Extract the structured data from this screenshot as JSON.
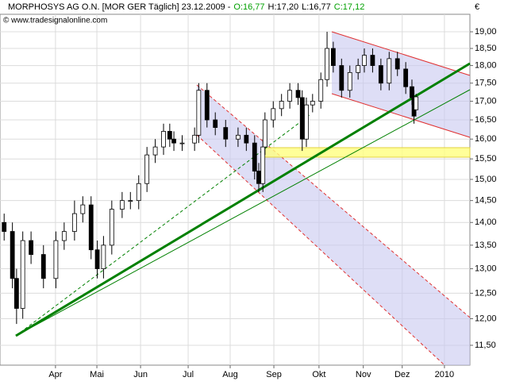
{
  "chart_data": {
    "type": "candlestick",
    "title": "MORPHOSYS AG O.N. [MOR GER  Täglich] 23.12.2009 -",
    "quote": [
      {
        "text": "O:16,77",
        "color": "#00a000"
      },
      {
        "text": "H:17,20",
        "color": "#000000"
      },
      {
        "text": "L:16,77",
        "color": "#000000"
      },
      {
        "text": "C:17,12",
        "color": "#00a000"
      }
    ],
    "source": "© www.tradesignalonline.com",
    "currency": "€",
    "log_scale": true,
    "grid": true,
    "up_color": "#ffffff",
    "down_color": "#000000",
    "x": [
      0,
      4,
      6,
      9,
      13,
      19,
      25,
      29,
      34,
      38,
      42,
      45,
      48,
      52,
      57,
      61,
      65,
      69,
      73,
      77,
      80,
      82,
      86,
      92,
      94,
      98,
      102,
      107,
      113,
      117,
      121,
      123,
      125,
      126,
      130,
      134,
      138,
      142,
      144,
      146,
      149,
      153,
      156,
      159,
      163,
      167,
      171,
      174,
      178,
      182,
      186,
      190,
      194,
      197,
      198,
      199
    ],
    "open": [
      14.0,
      13.8,
      12.8,
      12.2,
      13.6,
      13.3,
      12.8,
      13.6,
      13.8,
      14.2,
      14.4,
      13.4,
      13.0,
      13.5,
      14.3,
      14.5,
      14.5,
      14.9,
      15.6,
      15.8,
      16.2,
      16.0,
      15.9,
      15.9,
      16.1,
      17.3,
      16.5,
      16.3,
      16.0,
      16.1,
      15.9,
      15.2,
      14.9,
      15.8,
      16.5,
      16.8,
      17.0,
      17.3,
      17.1,
      16.0,
      16.9,
      17.0,
      17.6,
      18.5,
      18.0,
      17.3,
      17.8,
      18.0,
      18.3,
      18.0,
      17.5,
      18.2,
      17.9,
      17.4,
      17.1,
      16.77
    ],
    "high": [
      14.2,
      14.0,
      13.0,
      13.8,
      13.8,
      13.5,
      13.8,
      14.0,
      14.5,
      14.6,
      14.6,
      13.6,
      13.7,
      14.5,
      14.7,
      14.7,
      15.1,
      15.8,
      16.0,
      16.4,
      16.4,
      16.2,
      16.1,
      16.3,
      17.5,
      17.5,
      16.7,
      16.5,
      16.3,
      16.3,
      16.1,
      15.4,
      16.0,
      16.7,
      17.0,
      17.2,
      17.5,
      17.5,
      17.3,
      17.1,
      17.2,
      17.8,
      19.0,
      18.7,
      18.2,
      18.0,
      18.2,
      18.5,
      18.5,
      18.2,
      18.4,
      18.4,
      18.1,
      17.6,
      17.3,
      17.2
    ],
    "low": [
      13.6,
      12.6,
      11.9,
      12.0,
      13.1,
      12.6,
      12.6,
      13.4,
      13.6,
      14.0,
      13.2,
      12.8,
      12.8,
      13.3,
      14.1,
      14.3,
      14.3,
      14.7,
      15.4,
      15.6,
      15.8,
      15.7,
      15.7,
      15.7,
      15.9,
      16.3,
      16.1,
      15.8,
      15.8,
      15.7,
      15.0,
      14.7,
      14.7,
      15.6,
      16.3,
      16.6,
      16.8,
      16.9,
      15.7,
      15.8,
      16.7,
      16.8,
      17.4,
      17.8,
      17.1,
      17.1,
      17.6,
      17.8,
      17.8,
      17.3,
      17.3,
      17.7,
      17.2,
      16.9,
      16.4,
      16.77
    ],
    "close": [
      13.8,
      12.8,
      12.2,
      13.6,
      13.3,
      12.8,
      13.6,
      13.8,
      14.2,
      14.4,
      13.4,
      13.0,
      13.5,
      14.3,
      14.5,
      14.5,
      14.9,
      15.6,
      15.8,
      16.2,
      16.0,
      15.9,
      15.9,
      16.1,
      17.3,
      16.5,
      16.3,
      16.0,
      16.1,
      15.9,
      15.2,
      14.9,
      15.8,
      16.5,
      16.8,
      17.0,
      17.3,
      17.1,
      16.0,
      16.9,
      17.0,
      17.6,
      18.5,
      18.0,
      17.3,
      17.8,
      18.0,
      18.3,
      18.0,
      17.5,
      18.2,
      17.9,
      17.4,
      17.1,
      16.6,
      17.12
    ],
    "xlim": [
      -2,
      225
    ],
    "xticks": [
      {
        "value": 24.8,
        "label": "Apr"
      },
      {
        "value": 44.8,
        "label": "Mai"
      },
      {
        "value": 65.9,
        "label": "Jun"
      },
      {
        "value": 88.9,
        "label": "Jul"
      },
      {
        "value": 109.2,
        "label": "Aug"
      },
      {
        "value": 130.3,
        "label": "Sep"
      },
      {
        "value": 152.1,
        "label": "Okt"
      },
      {
        "value": 173.5,
        "label": "Nov"
      },
      {
        "value": 192.3,
        "label": "Dez"
      },
      {
        "value": 212.7,
        "label": "2010"
      }
    ],
    "ylim": [
      11.14,
      19.54
    ],
    "yticks": [
      {
        "value": 11.5,
        "label": "11,50"
      },
      {
        "value": 12,
        "label": "12,00"
      },
      {
        "value": 12.5,
        "label": "12,50"
      },
      {
        "value": 13,
        "label": "13,00"
      },
      {
        "value": 13.5,
        "label": "13,50"
      },
      {
        "value": 14,
        "label": "14,00"
      },
      {
        "value": 14.5,
        "label": "14,50"
      },
      {
        "value": 15,
        "label": "15,00"
      },
      {
        "value": 15.5,
        "label": "15,50"
      },
      {
        "value": 16,
        "label": "16,00"
      },
      {
        "value": 16.5,
        "label": "16,50"
      },
      {
        "value": 17,
        "label": "17,00"
      },
      {
        "value": 17.5,
        "label": "17,50"
      },
      {
        "value": 18,
        "label": "18,00"
      },
      {
        "value": 18.5,
        "label": "18,50"
      },
      {
        "value": 19,
        "label": "19,00"
      }
    ]
  }
}
